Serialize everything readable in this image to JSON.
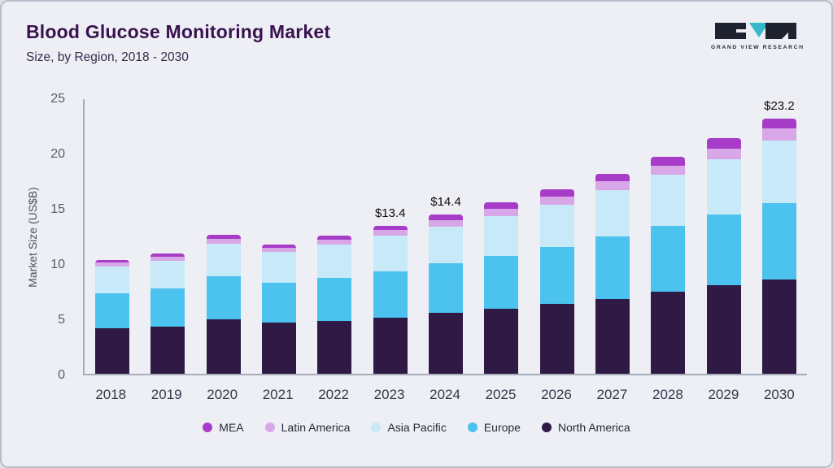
{
  "header": {
    "title": "Blood Glucose Monitoring Market",
    "subtitle": "Size, by Region, 2018 - 2030",
    "logo_text": "GRAND VIEW RESEARCH"
  },
  "chart_data": {
    "type": "bar",
    "stacked": true,
    "title": "Blood Glucose Monitoring Market Size, by Region, 2018 - 2030",
    "xlabel": "",
    "ylabel": "Market Size (US$B)",
    "ylim": [
      0,
      25
    ],
    "yticks": [
      0,
      5,
      10,
      15,
      20,
      25
    ],
    "grid": false,
    "legend_position": "bottom",
    "categories": [
      "2018",
      "2019",
      "2020",
      "2021",
      "2022",
      "2023",
      "2024",
      "2025",
      "2026",
      "2027",
      "2028",
      "2029",
      "2030"
    ],
    "series": [
      {
        "name": "North America",
        "color": "#2f1a45",
        "values": [
          4.1,
          4.3,
          4.9,
          4.6,
          4.8,
          5.1,
          5.5,
          5.9,
          6.3,
          6.8,
          7.4,
          8.0,
          8.6
        ]
      },
      {
        "name": "Europe",
        "color": "#4cc2ee",
        "values": [
          3.2,
          3.4,
          3.9,
          3.6,
          3.9,
          4.2,
          4.5,
          4.8,
          5.2,
          5.6,
          6.0,
          6.4,
          6.9
        ]
      },
      {
        "name": "Asia Pacific",
        "color": "#c7e9f8",
        "values": [
          2.4,
          2.5,
          3.0,
          2.8,
          3.0,
          3.2,
          3.3,
          3.6,
          3.8,
          4.2,
          4.6,
          5.0,
          5.7
        ]
      },
      {
        "name": "Latin America",
        "color": "#d8a7e8",
        "values": [
          0.35,
          0.4,
          0.45,
          0.4,
          0.45,
          0.5,
          0.6,
          0.65,
          0.75,
          0.8,
          0.85,
          1.0,
          1.1
        ]
      },
      {
        "name": "MEA",
        "color": "#a63cc7",
        "values": [
          0.25,
          0.3,
          0.35,
          0.3,
          0.35,
          0.4,
          0.5,
          0.55,
          0.65,
          0.7,
          0.75,
          0.9,
          0.9
        ]
      }
    ],
    "totals": [
      10.3,
      10.9,
      12.6,
      11.7,
      12.5,
      13.4,
      14.4,
      15.5,
      16.7,
      18.1,
      19.6,
      21.3,
      23.2
    ],
    "annotations": [
      {
        "category": "2023",
        "label": "$13.4"
      },
      {
        "category": "2024",
        "label": "$14.4"
      },
      {
        "category": "2030",
        "label": "$23.2"
      }
    ],
    "legend": [
      "MEA",
      "Latin America",
      "Asia Pacific",
      "Europe",
      "North America"
    ]
  }
}
